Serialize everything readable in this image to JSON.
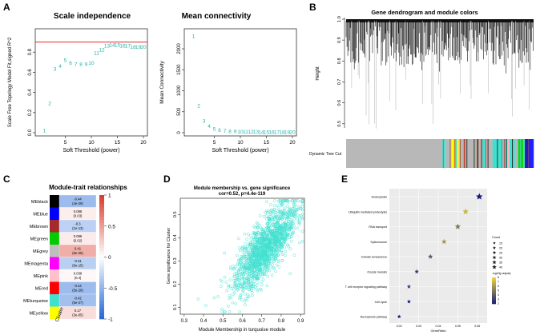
{
  "panels": {
    "A": {
      "label": "A",
      "scale_independence": {
        "chart_data": {
          "type": "scatter",
          "title": "Scale independence",
          "xlabel": "Soft Threshold (power)",
          "ylabel": "Scale Free Topology Model Fit,signed R^2",
          "xlim": [
            0,
            20
          ],
          "ylim": [
            0,
            1
          ],
          "xticks": [
            "5",
            "10",
            "15",
            "20"
          ],
          "yticks": [
            "0.0",
            "0.2",
            "0.4",
            "0.6",
            "0.8"
          ],
          "hline": 0.9,
          "points": [
            {
              "x": 1,
              "y": 0.02,
              "label": "1"
            },
            {
              "x": 2,
              "y": 0.29,
              "label": "2"
            },
            {
              "x": 3,
              "y": 0.63,
              "label": "3"
            },
            {
              "x": 4,
              "y": 0.66,
              "label": "4"
            },
            {
              "x": 5,
              "y": 0.72,
              "label": "5"
            },
            {
              "x": 6,
              "y": 0.69,
              "label": "6"
            },
            {
              "x": 7,
              "y": 0.68,
              "label": "7"
            },
            {
              "x": 8,
              "y": 0.68,
              "label": "8"
            },
            {
              "x": 9,
              "y": 0.68,
              "label": "9"
            },
            {
              "x": 10,
              "y": 0.69,
              "label": "10"
            },
            {
              "x": 11,
              "y": 0.79,
              "label": "11"
            },
            {
              "x": 12,
              "y": 0.82,
              "label": "12"
            },
            {
              "x": 13,
              "y": 0.86,
              "label": "13"
            },
            {
              "x": 14,
              "y": 0.87,
              "label": "14"
            },
            {
              "x": 15,
              "y": 0.87,
              "label": "15"
            },
            {
              "x": 16,
              "y": 0.86,
              "label": "16"
            },
            {
              "x": 17,
              "y": 0.86,
              "label": "17"
            },
            {
              "x": 18,
              "y": 0.85,
              "label": "18"
            },
            {
              "x": 19,
              "y": 0.85,
              "label": "19"
            },
            {
              "x": 20,
              "y": 0.85,
              "label": "20"
            }
          ]
        }
      },
      "mean_connectivity": {
        "chart_data": {
          "type": "scatter",
          "title": "Mean connectivity",
          "xlabel": "Soft Threshold (power)",
          "ylabel": "Mean Connectivity",
          "xlim": [
            0,
            20
          ],
          "ylim": [
            0,
            2400
          ],
          "xticks": [
            "5",
            "10",
            "15",
            "20"
          ],
          "yticks": [
            "0",
            "500",
            "1000",
            "1500",
            "2000"
          ],
          "points": [
            {
              "x": 1,
              "y": 2300,
              "label": "1"
            },
            {
              "x": 2,
              "y": 640,
              "label": "2"
            },
            {
              "x": 3,
              "y": 280,
              "label": "3"
            },
            {
              "x": 4,
              "y": 150,
              "label": "4"
            },
            {
              "x": 5,
              "y": 90,
              "label": "5"
            },
            {
              "x": 6,
              "y": 60,
              "label": "6"
            },
            {
              "x": 7,
              "y": 40,
              "label": "7"
            },
            {
              "x": 8,
              "y": 30,
              "label": "8"
            },
            {
              "x": 9,
              "y": 25,
              "label": "9"
            },
            {
              "x": 10,
              "y": 20,
              "label": "10"
            },
            {
              "x": 11,
              "y": 18,
              "label": "11"
            },
            {
              "x": 12,
              "y": 16,
              "label": "12"
            },
            {
              "x": 13,
              "y": 15,
              "label": "13"
            },
            {
              "x": 14,
              "y": 14,
              "label": "14"
            },
            {
              "x": 15,
              "y": 13,
              "label": "15"
            },
            {
              "x": 16,
              "y": 12,
              "label": "16"
            },
            {
              "x": 17,
              "y": 11,
              "label": "17"
            },
            {
              "x": 18,
              "y": 10,
              "label": "18"
            },
            {
              "x": 19,
              "y": 10,
              "label": "19"
            },
            {
              "x": 20,
              "y": 9,
              "label": "20"
            }
          ]
        }
      }
    },
    "B": {
      "label": "B",
      "chart_data": {
        "type": "dendrogram",
        "title": "Gene dendrogram and module colors",
        "ylabel": "Height",
        "yticks": [
          "0.5",
          "0.6",
          "0.7",
          "0.8",
          "0.9",
          "1.0"
        ],
        "ylim": [
          0.48,
          1.0
        ],
        "color_bar_label": "Dynamic Tree Cut",
        "module_colors": [
          "grey",
          "turquoise",
          "blue",
          "brown",
          "yellow",
          "green",
          "red",
          "black",
          "pink",
          "magenta"
        ]
      }
    },
    "C": {
      "label": "C",
      "chart_data": {
        "type": "heatmap",
        "title": "Module-trait relationships",
        "column": "Cluster",
        "colorbar_ticks": [
          "1",
          "0.5",
          "0",
          "-0.5",
          "-1"
        ],
        "vmin": -1,
        "vmax": 1,
        "rows": [
          {
            "name": "MEblack",
            "color": "#000000",
            "r": -0.44,
            "text": "-0.44\n(4e-29)"
          },
          {
            "name": "MEblue",
            "color": "#0000ff",
            "r": 0.088,
            "text": "0.088\n(0.03)"
          },
          {
            "name": "MEbrown",
            "color": "#a52a2a",
            "r": -0.3,
            "text": "-0.3\n(1e-13)"
          },
          {
            "name": "MEgreen",
            "color": "#00cc00",
            "r": 0.096,
            "text": "0.096\n(0.02)"
          },
          {
            "name": "MEgrey",
            "color": "#bebebe",
            "r": 0.41,
            "text": "0.41\n(6e-26)"
          },
          {
            "name": "MEmagenta",
            "color": "#ff00ff",
            "r": -0.31,
            "text": "-0.31\n(6e-15)"
          },
          {
            "name": "MEpink",
            "color": "#ffc0cb",
            "r": 0.038,
            "text": "0.038\n(0.4)"
          },
          {
            "name": "MEred",
            "color": "#ff0000",
            "r": -0.44,
            "text": "-0.44\n(3e-29)"
          },
          {
            "name": "MEturquoise",
            "color": "#40e0d0",
            "r": -0.42,
            "text": "-0.42\n(5e-27)"
          },
          {
            "name": "MEyellow",
            "color": "#ffff00",
            "r": 0.17,
            "text": "0.17\n(3e-05)"
          }
        ]
      }
    },
    "D": {
      "label": "D",
      "chart_data": {
        "type": "scatter",
        "title": "Module membership vs. gene significance",
        "subtitle": "cor=0.52, p=4.4e-119",
        "xlabel": "Module Membership in turquoise module",
        "ylabel": "Gene significance for Cluster",
        "xlim": [
          0.28,
          0.92
        ],
        "ylim": [
          0.07,
          0.57
        ],
        "xticks": [
          0.3,
          0.4,
          0.5,
          0.6,
          0.7,
          0.8,
          0.9
        ],
        "yticks": [
          0.1,
          0.2,
          0.3,
          0.4,
          0.5
        ],
        "n_points": 1500,
        "cor": 0.52,
        "color": "#40e0d0"
      }
    },
    "E": {
      "label": "E",
      "chart_data": {
        "type": "dot",
        "xlabel": "GeneRatio",
        "xticks": [
          "0.02",
          "0.03",
          "0.04",
          "0.05",
          "0.06"
        ],
        "xlim": [
          0.015,
          0.065
        ],
        "legend_count_title": "Count",
        "legend_count_items": [
          "15",
          "20",
          "25",
          "30",
          "35",
          "40"
        ],
        "legend_p_title": "-log10(p.adjust)",
        "legend_p_ticks": [
          "2",
          "3",
          "4",
          "5",
          "6",
          "7",
          "8"
        ],
        "terms": [
          {
            "name": "Endocytosis",
            "ratio": 0.061,
            "count": 42,
            "p": 2
          },
          {
            "name": "Ubiquitin mediated proteolysis",
            "ratio": 0.054,
            "count": 36,
            "p": 7
          },
          {
            "name": "RNA transport",
            "ratio": 0.05,
            "count": 33,
            "p": 5
          },
          {
            "name": "Spliceosome",
            "ratio": 0.043,
            "count": 28,
            "p": 6
          },
          {
            "name": "Cellular senescence",
            "ratio": 0.036,
            "count": 25,
            "p": 4
          },
          {
            "name": "Oocyte meiosis",
            "ratio": 0.029,
            "count": 20,
            "p": 3
          },
          {
            "name": "T cell receptor signaling pathway",
            "ratio": 0.025,
            "count": 17,
            "p": 3
          },
          {
            "name": "Cell cycle",
            "ratio": 0.025,
            "count": 16,
            "p": 2
          },
          {
            "name": "Necroptosis pathway",
            "ratio": 0.02,
            "count": 15,
            "p": 2
          }
        ]
      }
    }
  },
  "colors": {
    "teal": "#26b3a6",
    "hline": "#e8262a",
    "heat_neg": "#2166d6",
    "heat_pos": "#d8392b"
  }
}
